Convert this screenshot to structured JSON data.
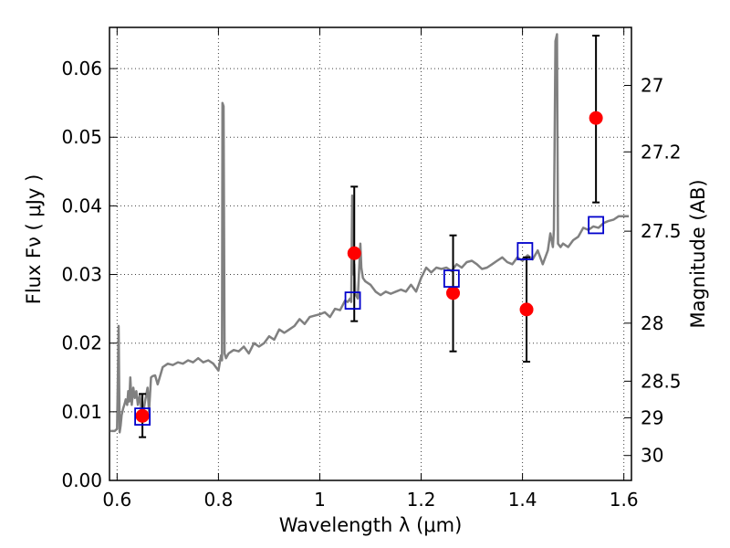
{
  "chart_data": {
    "type": "scatter",
    "title": "",
    "xlabel": "Wavelength  λ (μm)",
    "ylabel": "Flux  Fν ( μJy )",
    "ylabel_right": "Magnitude (AB)",
    "xlim": [
      0.585,
      1.615
    ],
    "ylim": [
      0.0,
      0.066
    ],
    "grid": true,
    "x_ticks": [
      0.6,
      0.8,
      1.0,
      1.2,
      1.4,
      1.6
    ],
    "x_tick_labels": [
      "0.6",
      "0.8",
      "1",
      "1.2",
      "1.4",
      "1.6"
    ],
    "y_ticks": [
      0.0,
      0.01,
      0.02,
      0.03,
      0.04,
      0.05,
      0.06
    ],
    "y_tick_labels": [
      "0.00",
      "0.01",
      "0.02",
      "0.03",
      "0.04",
      "0.05",
      "0.06"
    ],
    "right_ticks": [
      27,
      27.2,
      27.5,
      28,
      28.5,
      29,
      30
    ],
    "right_tick_labels": [
      "27",
      "27.2",
      "27.5",
      "28",
      "28.5",
      "29",
      "30"
    ],
    "series": [
      {
        "kind": "line",
        "color": "#808080",
        "x": [
          0.587,
          0.595,
          0.6,
          0.603,
          0.605,
          0.607,
          0.609,
          0.612,
          0.615,
          0.617,
          0.62,
          0.622,
          0.624,
          0.626,
          0.629,
          0.632,
          0.635,
          0.638,
          0.641,
          0.645,
          0.648,
          0.651,
          0.655,
          0.66,
          0.663,
          0.667,
          0.67,
          0.675,
          0.68,
          0.69,
          0.7,
          0.71,
          0.72,
          0.73,
          0.74,
          0.75,
          0.76,
          0.77,
          0.78,
          0.79,
          0.8,
          0.805,
          0.807,
          0.808,
          0.81,
          0.812,
          0.815,
          0.82,
          0.83,
          0.84,
          0.85,
          0.86,
          0.87,
          0.88,
          0.89,
          0.9,
          0.91,
          0.92,
          0.93,
          0.94,
          0.95,
          0.96,
          0.97,
          0.98,
          0.99,
          1.0,
          1.01,
          1.02,
          1.03,
          1.04,
          1.05,
          1.055,
          1.06,
          1.062,
          1.064,
          1.066,
          1.068,
          1.07,
          1.075,
          1.08,
          1.082,
          1.085,
          1.09,
          1.1,
          1.11,
          1.12,
          1.13,
          1.14,
          1.15,
          1.16,
          1.17,
          1.18,
          1.19,
          1.2,
          1.21,
          1.22,
          1.23,
          1.24,
          1.25,
          1.26,
          1.27,
          1.28,
          1.29,
          1.3,
          1.31,
          1.32,
          1.33,
          1.34,
          1.35,
          1.36,
          1.37,
          1.38,
          1.39,
          1.4,
          1.41,
          1.42,
          1.43,
          1.44,
          1.45,
          1.455,
          1.46,
          1.462,
          1.465,
          1.468,
          1.47,
          1.475,
          1.48,
          1.49,
          1.5,
          1.51,
          1.52,
          1.53,
          1.54,
          1.55,
          1.56,
          1.57,
          1.58,
          1.59,
          1.6,
          1.61
        ],
        "y": [
          0.0072,
          0.0072,
          0.0075,
          0.0225,
          0.007,
          0.008,
          0.0095,
          0.0105,
          0.0112,
          0.0118,
          0.011,
          0.013,
          0.0115,
          0.015,
          0.011,
          0.0135,
          0.012,
          0.013,
          0.011,
          0.0125,
          0.01,
          0.0095,
          0.0115,
          0.0135,
          0.01,
          0.015,
          0.0152,
          0.0153,
          0.014,
          0.0165,
          0.017,
          0.0168,
          0.0172,
          0.017,
          0.0175,
          0.0172,
          0.0178,
          0.0172,
          0.0175,
          0.017,
          0.016,
          0.0182,
          0.0175,
          0.055,
          0.0545,
          0.0185,
          0.0178,
          0.0185,
          0.019,
          0.0188,
          0.0195,
          0.0185,
          0.02,
          0.0195,
          0.02,
          0.021,
          0.0205,
          0.022,
          0.0215,
          0.022,
          0.0225,
          0.0235,
          0.0228,
          0.0238,
          0.024,
          0.0242,
          0.0245,
          0.0238,
          0.025,
          0.0248,
          0.0262,
          0.026,
          0.0265,
          0.026,
          0.0415,
          0.03,
          0.0315,
          0.0272,
          0.0265,
          0.0345,
          0.031,
          0.0295,
          0.029,
          0.0285,
          0.0275,
          0.027,
          0.0275,
          0.0272,
          0.0275,
          0.0278,
          0.0275,
          0.0285,
          0.0275,
          0.0295,
          0.031,
          0.0303,
          0.031,
          0.0308,
          0.031,
          0.0305,
          0.0315,
          0.031,
          0.0318,
          0.032,
          0.0315,
          0.0308,
          0.031,
          0.0315,
          0.032,
          0.0325,
          0.0318,
          0.0315,
          0.0325,
          0.032,
          0.0328,
          0.0322,
          0.0335,
          0.0315,
          0.0335,
          0.036,
          0.034,
          0.0365,
          0.064,
          0.065,
          0.0345,
          0.034,
          0.0345,
          0.034,
          0.035,
          0.0355,
          0.0368,
          0.0365,
          0.037,
          0.0368,
          0.0375,
          0.0378,
          0.038,
          0.0385,
          0.0385,
          0.0385
        ]
      },
      {
        "kind": "squares",
        "color": "#0000cc",
        "x": [
          0.65,
          1.065,
          1.26,
          1.405,
          1.545
        ],
        "y": [
          0.0093,
          0.0262,
          0.0294,
          0.0334,
          0.0372
        ]
      },
      {
        "kind": "points_with_errors",
        "color": "#ff0000",
        "x": [
          0.65,
          1.068,
          1.263,
          1.408,
          1.545
        ],
        "y": [
          0.0094,
          0.0331,
          0.0273,
          0.0249,
          0.0528
        ],
        "ylow": [
          0.0063,
          0.0232,
          0.0188,
          0.0173,
          0.0405
        ],
        "yhigh": [
          0.0126,
          0.0428,
          0.0357,
          0.0325,
          0.0648
        ]
      }
    ]
  }
}
